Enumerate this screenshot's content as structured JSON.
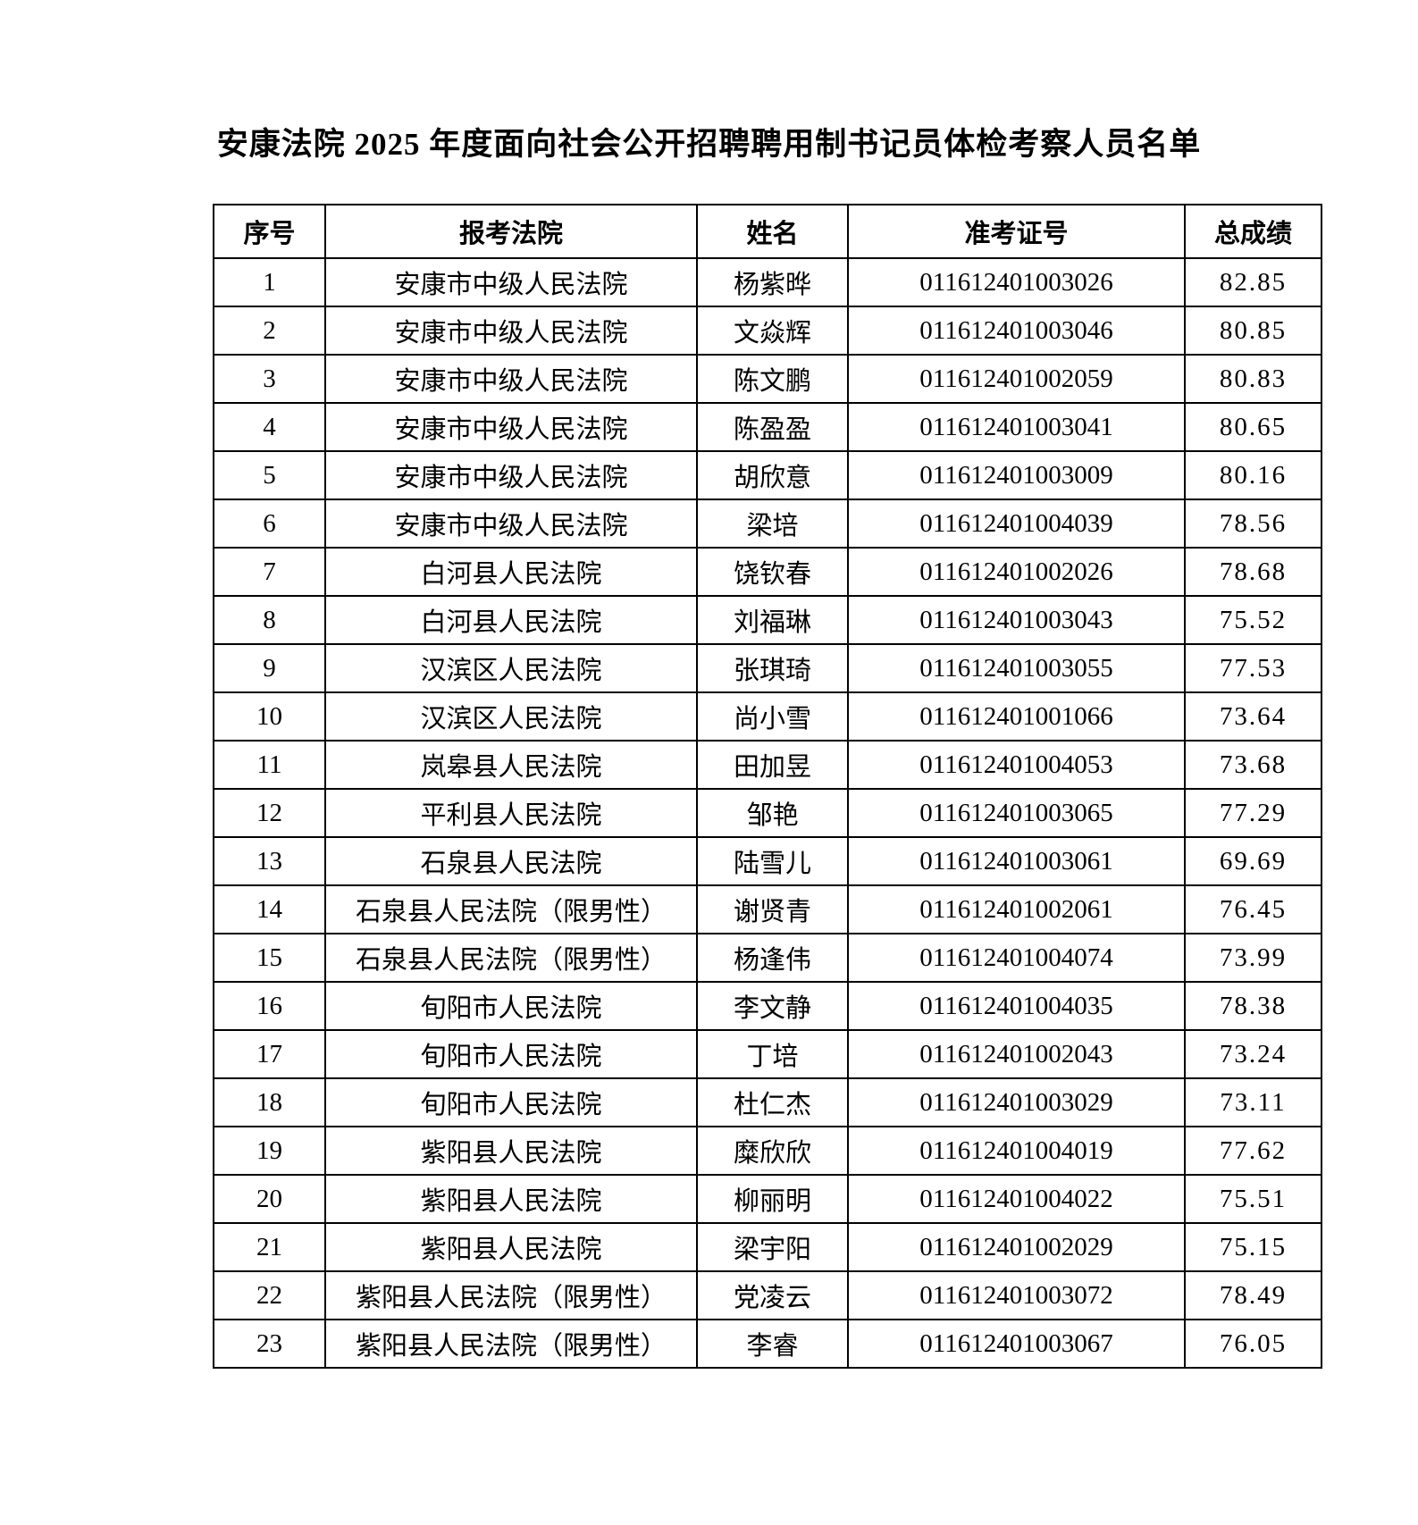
{
  "document": {
    "title": "安康法院 2025 年度面向社会公开招聘聘用制书记员体检考察人员名单"
  },
  "table": {
    "headers": [
      "序号",
      "报考法院",
      "姓名",
      "准考证号",
      "总成绩"
    ],
    "rows": [
      {
        "no": "1",
        "court": "安康市中级人民法院",
        "name": "杨紫晔",
        "exam_id": "011612401003026",
        "score": "82.85"
      },
      {
        "no": "2",
        "court": "安康市中级人民法院",
        "name": "文焱辉",
        "exam_id": "011612401003046",
        "score": "80.85"
      },
      {
        "no": "3",
        "court": "安康市中级人民法院",
        "name": "陈文鹏",
        "exam_id": "011612401002059",
        "score": "80.83"
      },
      {
        "no": "4",
        "court": "安康市中级人民法院",
        "name": "陈盈盈",
        "exam_id": "011612401003041",
        "score": "80.65"
      },
      {
        "no": "5",
        "court": "安康市中级人民法院",
        "name": "胡欣意",
        "exam_id": "011612401003009",
        "score": "80.16"
      },
      {
        "no": "6",
        "court": "安康市中级人民法院",
        "name": "梁培",
        "exam_id": "011612401004039",
        "score": "78.56"
      },
      {
        "no": "7",
        "court": "白河县人民法院",
        "name": "饶钦春",
        "exam_id": "011612401002026",
        "score": "78.68"
      },
      {
        "no": "8",
        "court": "白河县人民法院",
        "name": "刘福琳",
        "exam_id": "011612401003043",
        "score": "75.52"
      },
      {
        "no": "9",
        "court": "汉滨区人民法院",
        "name": "张琪琦",
        "exam_id": "011612401003055",
        "score": "77.53"
      },
      {
        "no": "10",
        "court": "汉滨区人民法院",
        "name": "尚小雪",
        "exam_id": "011612401001066",
        "score": "73.64"
      },
      {
        "no": "11",
        "court": "岚皋县人民法院",
        "name": "田加昱",
        "exam_id": "011612401004053",
        "score": "73.68"
      },
      {
        "no": "12",
        "court": "平利县人民法院",
        "name": "邹艳",
        "exam_id": "011612401003065",
        "score": "77.29"
      },
      {
        "no": "13",
        "court": "石泉县人民法院",
        "name": "陆雪儿",
        "exam_id": "011612401003061",
        "score": "69.69"
      },
      {
        "no": "14",
        "court": "石泉县人民法院（限男性）",
        "name": "谢贤青",
        "exam_id": "011612401002061",
        "score": "76.45"
      },
      {
        "no": "15",
        "court": "石泉县人民法院（限男性）",
        "name": "杨逢伟",
        "exam_id": "011612401004074",
        "score": "73.99"
      },
      {
        "no": "16",
        "court": "旬阳市人民法院",
        "name": "李文静",
        "exam_id": "011612401004035",
        "score": "78.38"
      },
      {
        "no": "17",
        "court": "旬阳市人民法院",
        "name": "丁培",
        "exam_id": "011612401002043",
        "score": "73.24"
      },
      {
        "no": "18",
        "court": "旬阳市人民法院",
        "name": "杜仁杰",
        "exam_id": "011612401003029",
        "score": "73.11"
      },
      {
        "no": "19",
        "court": "紫阳县人民法院",
        "name": "糜欣欣",
        "exam_id": "011612401004019",
        "score": "77.62"
      },
      {
        "no": "20",
        "court": "紫阳县人民法院",
        "name": "柳丽明",
        "exam_id": "011612401004022",
        "score": "75.51"
      },
      {
        "no": "21",
        "court": "紫阳县人民法院",
        "name": "梁宇阳",
        "exam_id": "011612401002029",
        "score": "75.15"
      },
      {
        "no": "22",
        "court": "紫阳县人民法院（限男性）",
        "name": "党凌云",
        "exam_id": "011612401003072",
        "score": "78.49"
      },
      {
        "no": "23",
        "court": "紫阳县人民法院（限男性）",
        "name": "李睿",
        "exam_id": "011612401003067",
        "score": "76.05"
      }
    ]
  }
}
